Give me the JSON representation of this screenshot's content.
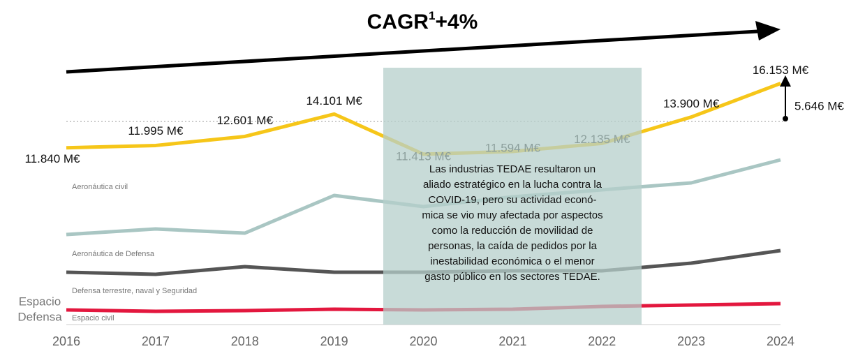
{
  "chart_data": {
    "type": "line",
    "title": [
      "CAGR",
      "1",
      "+4%"
    ],
    "categories": [
      "2016",
      "2017",
      "2018",
      "2019",
      "2020",
      "2021",
      "2022",
      "2023",
      "2024"
    ],
    "ylim": [
      0,
      18000
    ],
    "series": [
      {
        "color": "#f6c619",
        "values": [
          11840,
          11995,
          12601,
          14101,
          11413,
          11594,
          12135,
          13900,
          16153
        ],
        "value_labels": [
          "11.840 M€",
          "11.995 M€",
          "12.601 M€",
          "14.101 M€",
          "11.413 M€",
          "11.594 M€",
          "12.135 M€",
          "13.900 M€",
          "16.153 M€"
        ]
      },
      {
        "name": "Aeronáutica civil",
        "color": "#a9c6c3",
        "values": [
          6031,
          6405,
          6125,
          8649,
          7901,
          8556,
          9023,
          9491,
          11034
        ]
      },
      {
        "name": "Aeronáutica de Defensa",
        "color": "#555555",
        "values": [
          3506,
          3366,
          3881,
          3506,
          3506,
          3600,
          3600,
          4114,
          4956
        ]
      },
      {
        "name": "Defensa terrestre, naval y Seguridad",
        "color": "#e3173e",
        "values": [
          982,
          888,
          935,
          1029,
          982,
          1029,
          1216,
          1309,
          1403
        ]
      }
    ],
    "labels": [
      "Espacio civil",
      "Espacio",
      "Defensa"
    ],
    "growth_label": "5.646 M€",
    "annotation": [
      "Las industrias TEDAE resultaron un",
      "aliado estratégico en la lucha contra la",
      "COVID-19, pero su actividad econó-",
      "mica se vio muy afectada por aspectos",
      "como la reducción de movilidad de",
      "personas, la caída de pedidos por la",
      "inestabilidad económica o el menor",
      "gasto público en los sectores TEDAE."
    ]
  }
}
